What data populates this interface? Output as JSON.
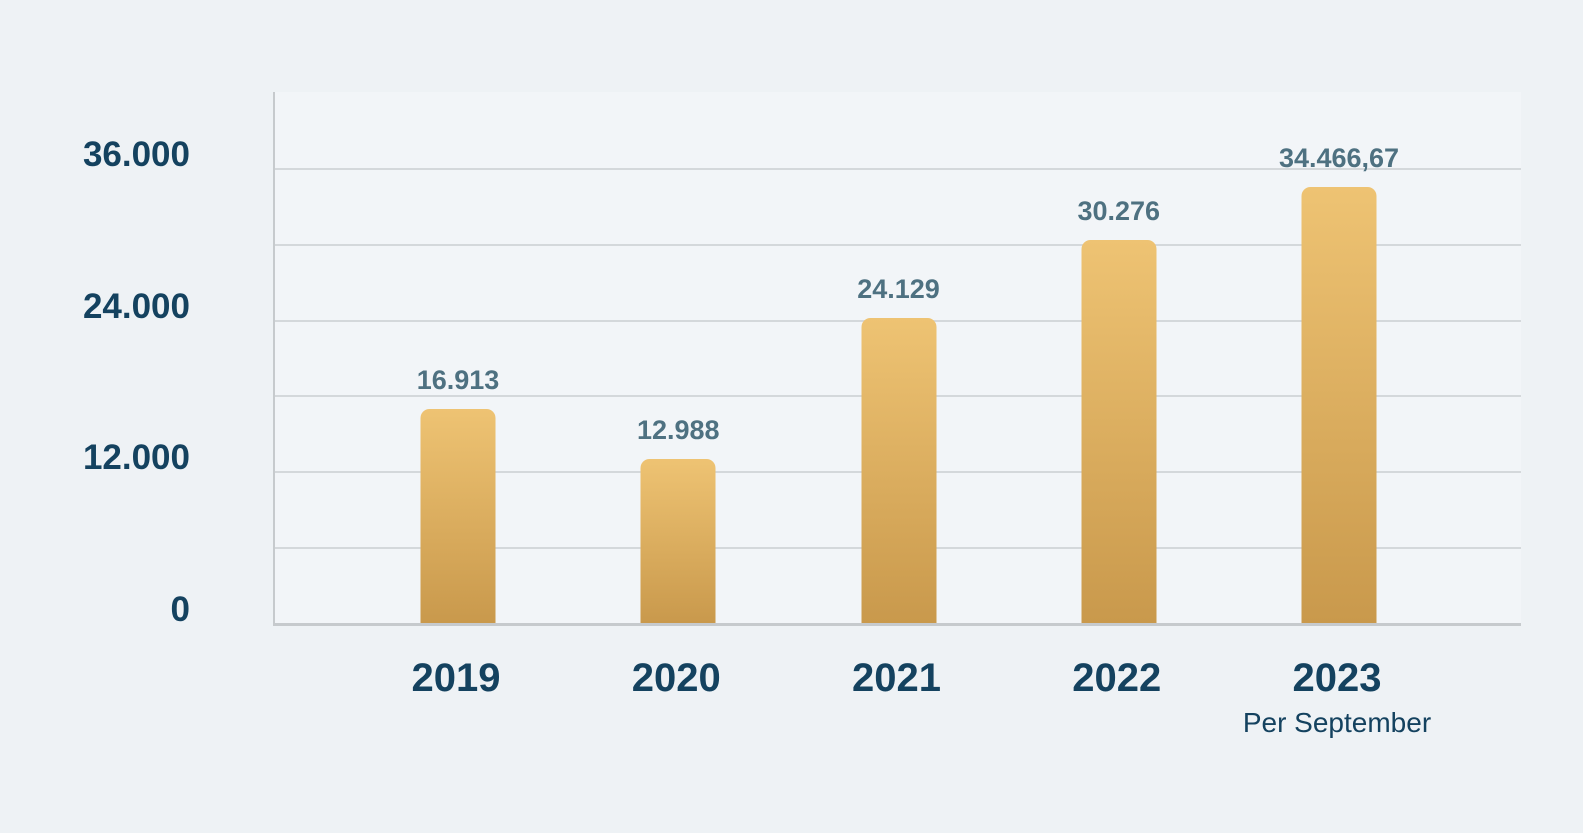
{
  "chart_data": {
    "type": "bar",
    "categories": [
      "2019",
      "2020",
      "2021",
      "2022",
      "2023"
    ],
    "category_sub_labels": [
      "",
      "",
      "",
      "",
      "Per September"
    ],
    "values": [
      16913,
      12988,
      24129,
      30276,
      34466.67
    ],
    "value_labels": [
      "16.913",
      "12.988",
      "24.129",
      "30.276",
      "34.466,67"
    ],
    "title": "",
    "xlabel": "",
    "ylabel": "",
    "grid": true,
    "legend_position": "none",
    "y_axis": {
      "min": 0,
      "max": 42000,
      "gridline_step": 6000,
      "gridline_top_value": 36000,
      "tick_labels": [
        {
          "value": 36000,
          "label": "36.000"
        },
        {
          "value": 24000,
          "label": "24.000"
        },
        {
          "value": 12000,
          "label": "12.000"
        },
        {
          "value": 0,
          "label": "0"
        }
      ]
    },
    "colors": {
      "background": "#eef2f5",
      "bar_gradient_top": "#eec373",
      "bar_gradient_bottom": "#c9994c",
      "axis_label": "#14425f",
      "value_label": "#4e7181",
      "gridline": "#d4d8db",
      "axis_line": "#c6cacd"
    }
  }
}
